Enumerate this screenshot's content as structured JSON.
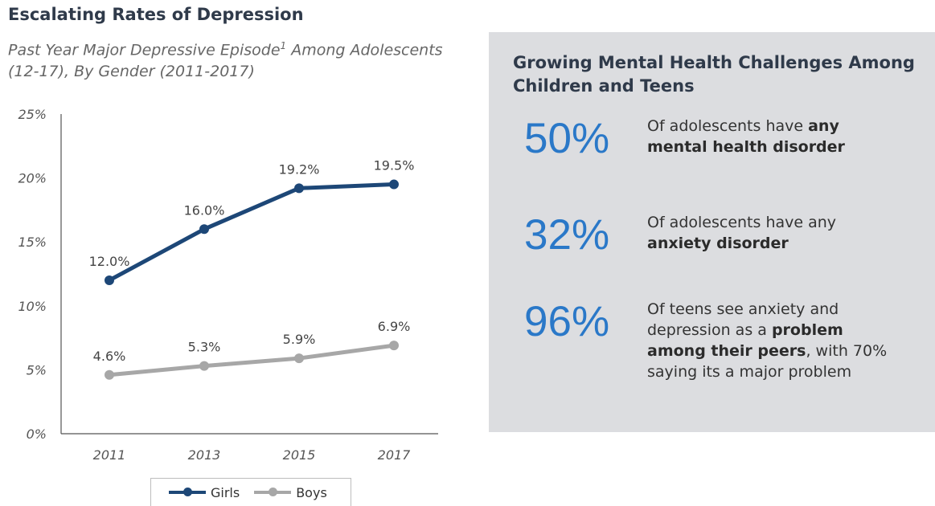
{
  "left": {
    "title": "Escalating Rates of Depression",
    "subtitle_a": "Past Year Major Depressive Episode",
    "subtitle_sup": "1",
    "subtitle_b": " Among Adolescents (12-17), By Gender (2011-2017)"
  },
  "chart_data": {
    "type": "line",
    "categories": [
      "2011",
      "2013",
      "2015",
      "2017"
    ],
    "series": [
      {
        "name": "Girls",
        "color": "#1d4777",
        "values": [
          12.0,
          16.0,
          19.2,
          19.5
        ],
        "labels": [
          "12.0%",
          "16.0%",
          "19.2%",
          "19.5%"
        ]
      },
      {
        "name": "Boys",
        "color": "#a7a7a7",
        "values": [
          4.6,
          5.3,
          5.9,
          6.9
        ],
        "labels": [
          "4.6%",
          "5.3%",
          "5.9%",
          "6.9%"
        ]
      }
    ],
    "y_ticks": [
      "0%",
      "5%",
      "10%",
      "15%",
      "20%",
      "25%"
    ],
    "ylim": [
      0,
      25
    ],
    "grid": false,
    "legend_position": "bottom"
  },
  "panel": {
    "heading": "Growing Mental Health Challenges Among Children and Teens",
    "stats": [
      {
        "pct": "50%",
        "text_1": "Of adolescents have ",
        "bold": "any mental health disorder",
        "text_2": ""
      },
      {
        "pct": "32%",
        "text_1": "Of adolescents have any ",
        "bold": "anxiety disorder",
        "text_2": ""
      },
      {
        "pct": "96%",
        "text_1": "Of teens see anxiety and depression as a ",
        "bold": "problem among their peers",
        "text_2": ", with 70% saying its a major problem"
      }
    ],
    "colors": {
      "accent": "#2a78c8",
      "background": "#dcdde0"
    }
  }
}
